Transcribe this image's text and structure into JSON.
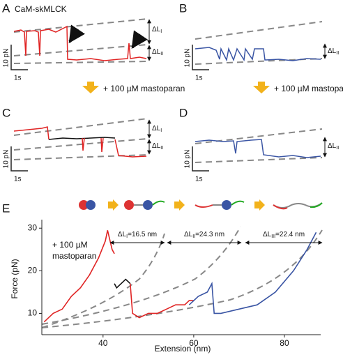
{
  "panels": [
    {
      "label": "A",
      "title": "CaM-skMLCK",
      "scale_y": "10 pN",
      "scale_x": "1s",
      "deltas": [
        {
          "prefix": "ΔL",
          "sub": "I"
        },
        {
          "prefix": "ΔL",
          "sub": "II"
        }
      ]
    },
    {
      "label": "B",
      "scale_y": "10 pN",
      "scale_x": "1s",
      "deltas": [
        {
          "prefix": "ΔL",
          "sub": "II"
        }
      ]
    },
    {
      "label": "C",
      "scale_y": "10 pN",
      "scale_x": "1s",
      "deltas": [
        {
          "prefix": "ΔL",
          "sub": "I"
        },
        {
          "prefix": "ΔL",
          "sub": "II"
        }
      ]
    },
    {
      "label": "D",
      "scale_y": "10 pN",
      "scale_x": "1s",
      "deltas": [
        {
          "prefix": "ΔL",
          "sub": "II"
        }
      ]
    }
  ],
  "treatment": "+ 100 µM mastoparan",
  "chart_data": {
    "type": "line",
    "label": "E",
    "x_label": "Extension (nm)",
    "y_label": "Force (pN)",
    "annotation": [
      "+ 100 µM",
      "mastoparan"
    ],
    "intervals": [
      {
        "prefix": "ΔL",
        "sub": "I",
        "suffix": "=16.5 nm"
      },
      {
        "prefix": "ΔL",
        "sub": "II",
        "suffix": "=24.3 nm"
      },
      {
        "prefix": "ΔL",
        "sub": "III",
        "suffix": "=22.4 nm"
      }
    ],
    "xlim": [
      26.5,
      88
    ],
    "ylim": [
      5,
      32
    ],
    "xticks": [
      40,
      60,
      80
    ],
    "yticks": [
      10,
      20,
      30
    ],
    "series": [
      {
        "color": "#e02424",
        "x": [
          27,
          29,
          31,
          33,
          35,
          37,
          39,
          40.5,
          41,
          42,
          42.5,
          null,
          46,
          46.5,
          48,
          50,
          52,
          54,
          56,
          58,
          59,
          60
        ],
        "values": [
          8,
          10,
          11,
          14,
          16,
          19,
          23,
          27,
          29.5,
          25,
          24,
          null,
          17,
          10,
          9,
          10,
          10,
          11,
          12,
          12,
          13,
          13
        ]
      },
      {
        "color": "#111111",
        "x": [
          42.5,
          43,
          44,
          45,
          46
        ],
        "values": [
          17,
          16,
          17,
          18,
          17
        ]
      },
      {
        "color": "#3a55a4",
        "x": [
          59,
          61,
          63,
          64,
          64.5,
          66,
          70,
          74,
          78,
          82,
          85,
          87
        ],
        "values": [
          12,
          14,
          15,
          17,
          10,
          10,
          11,
          12,
          15,
          20,
          25,
          29
        ]
      }
    ]
  }
}
